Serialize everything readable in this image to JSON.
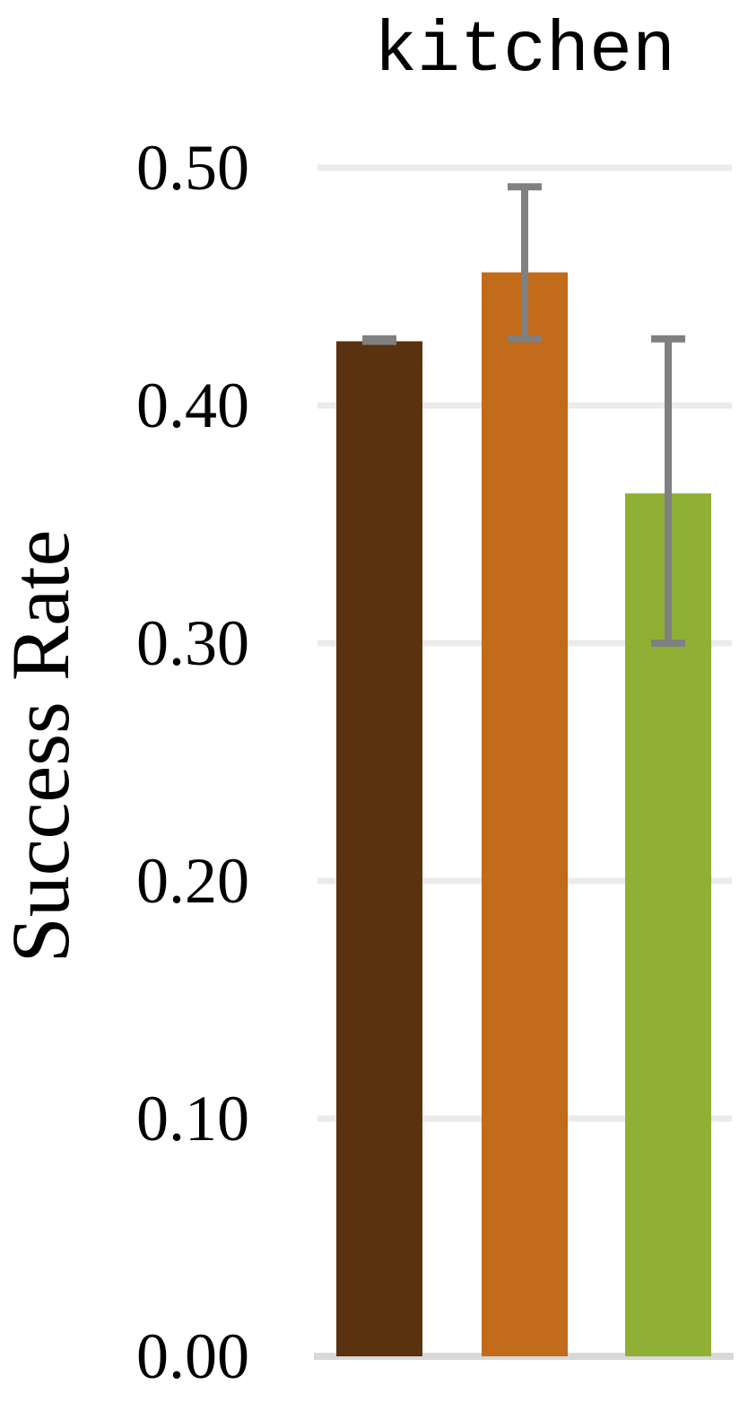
{
  "chart_data": {
    "type": "bar",
    "title": "kitchen",
    "xlabel": "",
    "ylabel": "Success Rate",
    "ylim": [
      0,
      0.5
    ],
    "yticks": [
      "0.00",
      "0.10",
      "0.20",
      "0.30",
      "0.40",
      "0.50"
    ],
    "yticks_values": [
      0,
      0.1,
      0.2,
      0.3,
      0.4,
      0.5
    ],
    "grid": "horizontal",
    "bars": [
      {
        "value": 0.427,
        "err_low": 0.427,
        "err_high": 0.428,
        "color": "#5B320F"
      },
      {
        "value": 0.456,
        "err_low": 0.428,
        "err_high": 0.492,
        "color": "#C16B1B"
      },
      {
        "value": 0.363,
        "err_low": 0.3,
        "err_high": 0.428,
        "color": "#8FB035"
      }
    ],
    "error_bar_color": "#808080",
    "grid_color": "#EBEBEB",
    "baseline_color": "#D9D9D9"
  }
}
